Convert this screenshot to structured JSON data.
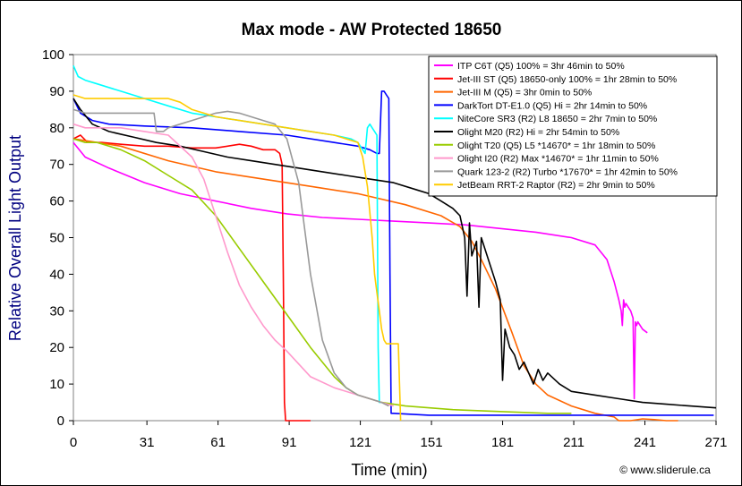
{
  "chart_data": {
    "type": "line",
    "title": "Max mode - AW Protected 18650",
    "xlabel": "Time (min)",
    "ylabel": "Relative Overall Light Output",
    "xlim": [
      0,
      271
    ],
    "ylim": [
      0,
      100
    ],
    "xticks": [
      0,
      31,
      61,
      91,
      121,
      151,
      181,
      211,
      241,
      271
    ],
    "yticks": [
      0,
      10,
      20,
      30,
      40,
      50,
      60,
      70,
      80,
      90,
      100
    ],
    "grid": false,
    "legend_position": "top-right",
    "copyright": "© www.sliderule.ca",
    "series": [
      {
        "name": "ITP C6T (Q5) 100% = 3hr 46min to 50%",
        "color": "#ff00ff",
        "x": [
          0,
          5,
          15,
          30,
          45,
          60,
          75,
          90,
          105,
          120,
          135,
          150,
          165,
          180,
          195,
          210,
          220,
          225,
          228,
          230,
          231,
          231.5,
          232,
          232.5,
          233,
          235,
          236,
          236.5,
          237,
          237.5,
          238,
          240,
          242
        ],
        "y": [
          76,
          72,
          69,
          65,
          62,
          60,
          58,
          56.5,
          55.5,
          55,
          54.5,
          54,
          53.5,
          52.5,
          51.5,
          50,
          48,
          44,
          38,
          33,
          30,
          26,
          33,
          31,
          32,
          30,
          28,
          6,
          27,
          26,
          27,
          25,
          24
        ]
      },
      {
        "name": "Jet-III ST (Q5) 18650-only 100% = 1hr 28min to 50%",
        "color": "#ff0000",
        "x": [
          0,
          3,
          6,
          12,
          20,
          30,
          40,
          50,
          60,
          70,
          75,
          80,
          85,
          87,
          88,
          88.5,
          89,
          89.5,
          90,
          100
        ],
        "y": [
          77,
          78,
          76,
          76,
          75.5,
          75,
          75,
          74.5,
          74.5,
          75.5,
          75,
          74,
          74,
          73,
          70,
          40,
          5,
          0,
          0,
          0
        ]
      },
      {
        "name": "Jet-III M (Q5) = 3hr 0min to 50%",
        "color": "#ff6600",
        "x": [
          0,
          10,
          20,
          40,
          60,
          80,
          100,
          120,
          140,
          155,
          163,
          168,
          172,
          178,
          185,
          190,
          195,
          200,
          210,
          220,
          228,
          230,
          235,
          240,
          245,
          250,
          255
        ],
        "y": [
          77,
          76,
          75,
          71,
          68,
          66,
          64,
          62,
          59,
          56,
          53,
          49,
          44,
          36,
          24,
          15,
          10,
          7,
          4,
          2,
          1,
          0,
          0,
          0.5,
          0.3,
          0,
          0
        ]
      },
      {
        "name": "DarkTort DT-E1.0 (Q5) Hi = 2hr 14min to 50%",
        "color": "#0000ff",
        "x": [
          0,
          3,
          8,
          15,
          30,
          50,
          70,
          90,
          110,
          120,
          125,
          128,
          129,
          130,
          131,
          132,
          133,
          133.5,
          134,
          135,
          150,
          180,
          210,
          240,
          260,
          270
        ],
        "y": [
          88,
          84,
          82,
          81,
          80.5,
          80,
          79,
          78,
          76,
          75,
          74,
          73,
          73,
          90,
          90,
          89,
          88,
          40,
          2,
          2,
          1.5,
          1.5,
          1.5,
          1.5,
          1.5,
          1.5
        ]
      },
      {
        "name": "NiteCore SR3 (R2) L8 18650 = 2hr 7min to 50%",
        "color": "#00ffff",
        "x": [
          0,
          2,
          5,
          10,
          20,
          30,
          40,
          50,
          60,
          70,
          80,
          90,
          100,
          110,
          117,
          120,
          122,
          123,
          124,
          125,
          126,
          127,
          128,
          128.5,
          129,
          129.5,
          130
        ],
        "y": [
          97,
          94,
          93,
          92,
          90,
          88,
          86,
          84,
          83,
          82,
          81,
          80,
          79,
          78,
          77,
          76,
          74,
          73,
          80,
          81,
          80,
          79,
          78,
          20,
          5,
          5,
          5
        ]
      },
      {
        "name": "Olight M20 (R2) Hi = 2hr 54min to 50%",
        "color": "#000000",
        "x": [
          0,
          3,
          8,
          15,
          25,
          35,
          45,
          55,
          65,
          75,
          85,
          95,
          105,
          115,
          125,
          135,
          145,
          150,
          155,
          160,
          163,
          165,
          166,
          167,
          168,
          170,
          171,
          172,
          173,
          174,
          176,
          178,
          180,
          181,
          182,
          184,
          186,
          188,
          190,
          192,
          194,
          196,
          198,
          200,
          205,
          210,
          220,
          230,
          240,
          250,
          260,
          271
        ],
        "y": [
          88,
          85,
          81,
          79,
          77.5,
          76,
          75,
          73.5,
          72,
          71,
          70,
          69,
          68,
          67,
          66,
          65,
          63,
          62,
          60,
          58,
          56,
          50,
          34,
          54,
          45,
          49,
          31,
          50,
          48,
          46,
          42,
          38,
          33,
          11,
          25,
          20,
          18,
          14,
          16,
          13,
          10,
          14,
          11,
          13,
          10,
          8,
          7,
          6,
          5,
          4.5,
          4,
          3.5
        ]
      },
      {
        "name": "Olight T20 (Q5) L5 *14670* = 1hr 18min to 50%",
        "color": "#99cc00",
        "x": [
          0,
          5,
          10,
          20,
          30,
          40,
          50,
          60,
          70,
          80,
          90,
          100,
          105,
          110,
          115,
          120,
          125,
          130,
          140,
          160,
          180,
          200,
          210
        ],
        "y": [
          77,
          76,
          76,
          74,
          71,
          67,
          63,
          56,
          47,
          38,
          29,
          20,
          16,
          12,
          9,
          7,
          6,
          5,
          4,
          3,
          2.5,
          2,
          2
        ]
      },
      {
        "name": "Olight I20 (R2) Max *14670* = 1hr 11min to 50%",
        "color": "#ff99cc",
        "x": [
          0,
          5,
          10,
          20,
          30,
          40,
          50,
          55,
          60,
          65,
          70,
          75,
          80,
          85,
          90,
          100,
          110,
          120,
          130,
          135
        ],
        "y": [
          81,
          80,
          80,
          80,
          79,
          78,
          72,
          66,
          56,
          46,
          37,
          31,
          26,
          22,
          19,
          12,
          9,
          7,
          5,
          4
        ]
      },
      {
        "name": "Quark 123-2 (R2) Turbo *17670* = 1hr 42min to 50%",
        "color": "#999999",
        "x": [
          0,
          5,
          10,
          20,
          25,
          30,
          34,
          35,
          38,
          40,
          45,
          50,
          55,
          60,
          65,
          70,
          75,
          80,
          85,
          90,
          95,
          100,
          105,
          110,
          115,
          120,
          125,
          130,
          133
        ],
        "y": [
          85,
          84,
          84,
          84,
          84,
          84,
          84,
          79,
          79,
          80,
          81,
          82,
          83,
          84,
          84.5,
          84,
          83,
          82,
          81,
          77,
          65,
          40,
          22,
          13,
          9,
          7,
          6,
          5,
          4
        ]
      },
      {
        "name": "JetBeam RRT-2 Raptor (R2) = 2hr 9min to 50%",
        "color": "#ffcc00",
        "x": [
          0,
          5,
          10,
          15,
          20,
          30,
          35,
          40,
          45,
          50,
          55,
          60,
          70,
          80,
          90,
          100,
          110,
          115,
          120,
          122,
          124,
          126,
          127,
          128,
          129,
          130,
          131,
          132,
          133,
          134,
          135,
          136,
          137,
          138
        ],
        "y": [
          89,
          88,
          88,
          88,
          88,
          88,
          88,
          88,
          87,
          85,
          84,
          83,
          82,
          81,
          80,
          79,
          78,
          77,
          76,
          72,
          64,
          50,
          40,
          35,
          30,
          25,
          22,
          21,
          21,
          21,
          21,
          21,
          21,
          0
        ]
      }
    ]
  }
}
